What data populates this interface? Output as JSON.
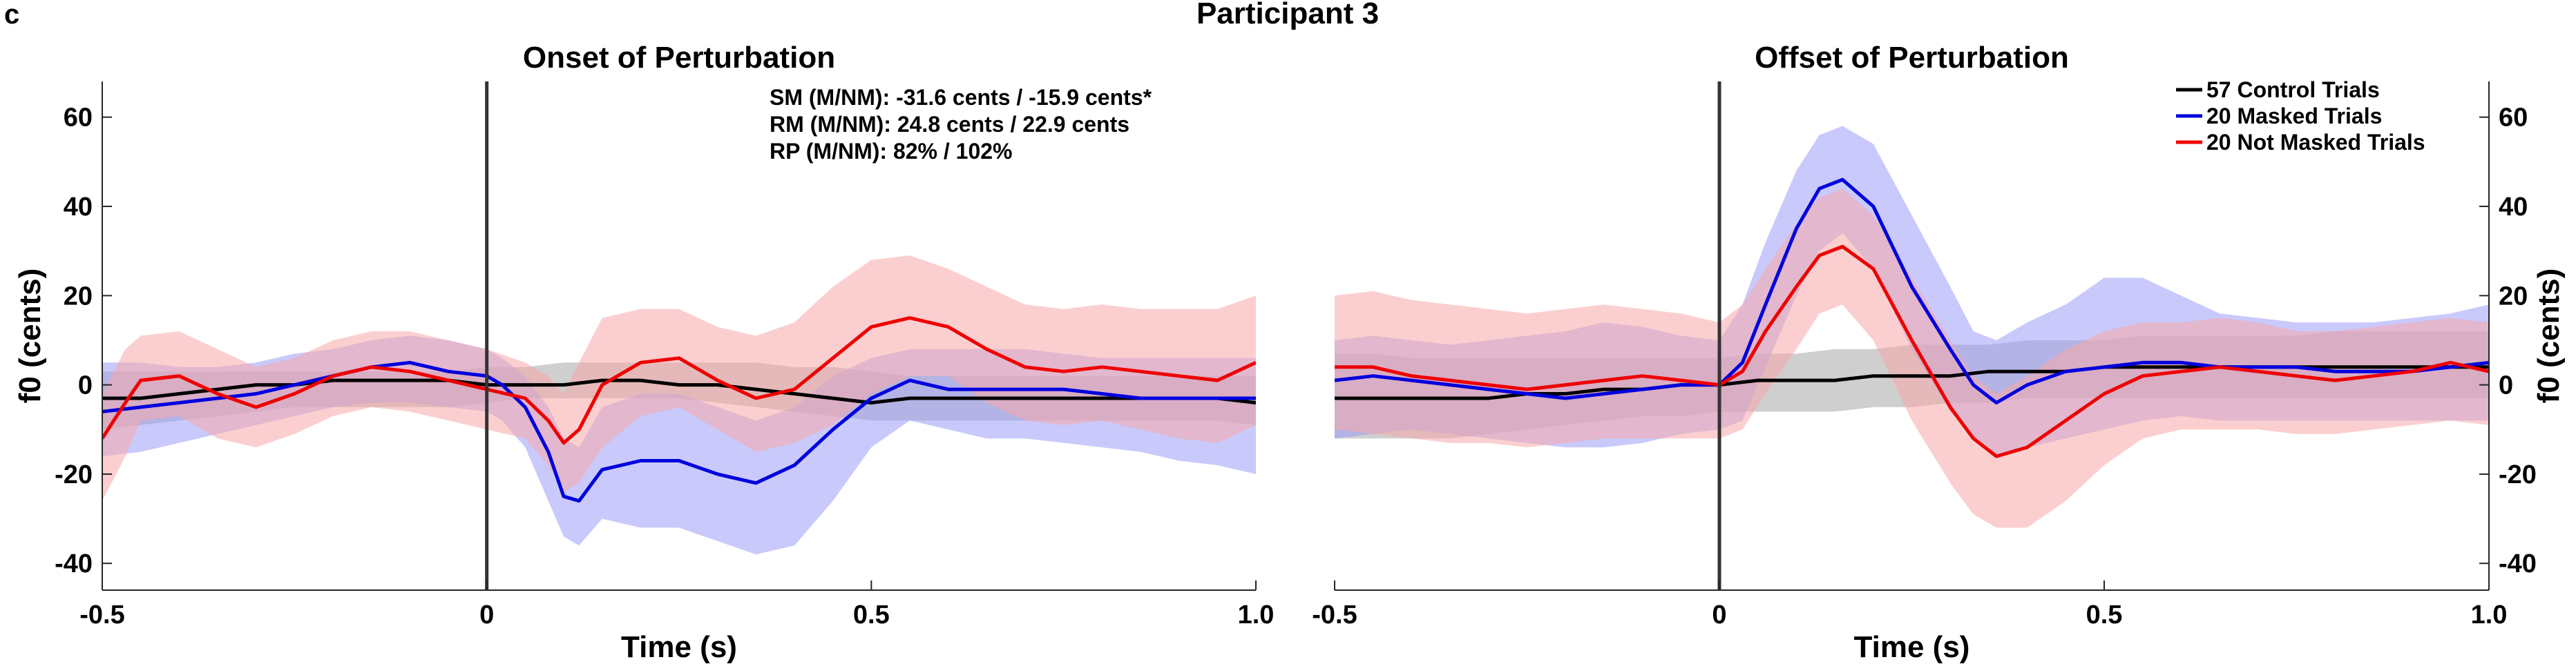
{
  "panel_letter": "c",
  "figure_title": "Participant 3",
  "stats": {
    "sm": "SM (M/NM): -31.6 cents / -15.9 cents*",
    "rm": "RM (M/NM): 24.8 cents / 22.9 cents",
    "rp": "RP (M/NM): 82% / 102%"
  },
  "legend": [
    {
      "label": "57 Control Trials",
      "color": "#000000"
    },
    {
      "label": "20 Masked Trials",
      "color": "#0000dd"
    },
    {
      "label": "20 Not Masked Trials",
      "color": "#ee0000"
    }
  ],
  "colors": {
    "control_line": "#000000",
    "control_band": "#bfbfbf",
    "masked_line": "#0000dd",
    "masked_band": "#9d9df7",
    "notmasked_line": "#ee0000",
    "notmasked_band": "#f7a8a8",
    "event_line": "#333333"
  },
  "chart_data": [
    {
      "type": "line",
      "title": "Onset of Perturbation",
      "xlabel": "Time (s)",
      "ylabel": "f0 (cents)",
      "xlim": [
        -0.5,
        1.0
      ],
      "ylim": [
        -46,
        68
      ],
      "xticks": [
        -0.5,
        0,
        0.5,
        1.0
      ],
      "xtick_labels": [
        "-0.5",
        "0",
        "0.5",
        "1.0"
      ],
      "yticks": [
        -40,
        -20,
        0,
        20,
        40,
        60
      ],
      "ytick_labels": [
        "-40",
        "-20",
        "0",
        "20",
        "40",
        "60"
      ],
      "ytick_side": "left",
      "event_x": 0,
      "series": [
        {
          "name": "57 Control Trials",
          "key": "control",
          "x": [
            -0.5,
            -0.45,
            -0.4,
            -0.35,
            -0.3,
            -0.25,
            -0.2,
            -0.15,
            -0.1,
            -0.05,
            0.0,
            0.05,
            0.1,
            0.15,
            0.2,
            0.25,
            0.3,
            0.35,
            0.4,
            0.45,
            0.5,
            0.55,
            0.6,
            0.65,
            0.7,
            0.75,
            0.8,
            0.85,
            0.9,
            0.95,
            1.0
          ],
          "mean": [
            -3,
            -3,
            -2,
            -1,
            0,
            0,
            1,
            1,
            1,
            1,
            0,
            0,
            0,
            1,
            1,
            0,
            0,
            -1,
            -2,
            -3,
            -4,
            -3,
            -3,
            -3,
            -3,
            -3,
            -3,
            -3,
            -3,
            -3,
            -4
          ],
          "upper": [
            3,
            3,
            3,
            3,
            3,
            3,
            3,
            3,
            3,
            3,
            4,
            4,
            5,
            5,
            5,
            5,
            5,
            5,
            4,
            4,
            3,
            2,
            2,
            2,
            2,
            2,
            2,
            2,
            2,
            2,
            2
          ],
          "lower": [
            -10,
            -9,
            -8,
            -7,
            -6,
            -5,
            -5,
            -5,
            -5,
            -5,
            -4,
            -3,
            -3,
            -3,
            -3,
            -3,
            -4,
            -5,
            -6,
            -7,
            -8,
            -8,
            -8,
            -8,
            -8,
            -8,
            -8,
            -8,
            -8,
            -8,
            -9
          ]
        },
        {
          "name": "20 Masked Trials",
          "key": "masked",
          "x": [
            -0.5,
            -0.45,
            -0.4,
            -0.35,
            -0.3,
            -0.25,
            -0.2,
            -0.15,
            -0.1,
            -0.05,
            0.0,
            0.02,
            0.05,
            0.08,
            0.1,
            0.12,
            0.15,
            0.2,
            0.25,
            0.3,
            0.35,
            0.4,
            0.45,
            0.5,
            0.55,
            0.6,
            0.65,
            0.7,
            0.75,
            0.8,
            0.85,
            0.9,
            0.95,
            1.0
          ],
          "mean": [
            -6,
            -5,
            -4,
            -3,
            -2,
            0,
            2,
            4,
            5,
            3,
            2,
            0,
            -5,
            -15,
            -25,
            -26,
            -19,
            -17,
            -17,
            -20,
            -22,
            -18,
            -10,
            -3,
            1,
            -1,
            -1,
            -1,
            -1,
            -2,
            -3,
            -3,
            -3,
            -3
          ],
          "upper": [
            5,
            5,
            4,
            4,
            5,
            7,
            8,
            10,
            11,
            10,
            8,
            6,
            2,
            -5,
            -12,
            -14,
            -5,
            -2,
            -2,
            -5,
            -8,
            -5,
            2,
            6,
            8,
            8,
            8,
            8,
            7,
            6,
            6,
            6,
            6,
            6
          ],
          "lower": [
            -16,
            -15,
            -13,
            -11,
            -9,
            -7,
            -5,
            -4,
            -4,
            -5,
            -6,
            -8,
            -14,
            -26,
            -34,
            -36,
            -30,
            -32,
            -32,
            -35,
            -38,
            -36,
            -26,
            -14,
            -8,
            -10,
            -12,
            -12,
            -13,
            -14,
            -15,
            -17,
            -18,
            -20
          ]
        },
        {
          "name": "20 Not Masked Trials",
          "key": "notmasked",
          "x": [
            -0.5,
            -0.47,
            -0.45,
            -0.4,
            -0.35,
            -0.3,
            -0.25,
            -0.2,
            -0.15,
            -0.1,
            -0.05,
            0.0,
            0.05,
            0.08,
            0.1,
            0.12,
            0.15,
            0.2,
            0.25,
            0.3,
            0.35,
            0.4,
            0.45,
            0.5,
            0.55,
            0.6,
            0.65,
            0.7,
            0.75,
            0.8,
            0.85,
            0.9,
            0.95,
            1.0
          ],
          "mean": [
            -12,
            -4,
            1,
            2,
            -2,
            -5,
            -2,
            2,
            4,
            3,
            1,
            -1,
            -3,
            -8,
            -13,
            -10,
            0,
            5,
            6,
            1,
            -3,
            -1,
            6,
            13,
            15,
            13,
            8,
            4,
            3,
            4,
            3,
            2,
            1,
            5
          ],
          "upper": [
            -2,
            8,
            11,
            12,
            8,
            4,
            6,
            10,
            12,
            12,
            10,
            8,
            5,
            2,
            -2,
            5,
            15,
            17,
            17,
            13,
            11,
            14,
            22,
            28,
            29,
            26,
            22,
            18,
            17,
            18,
            17,
            17,
            17,
            20
          ],
          "lower": [
            -26,
            -16,
            -8,
            -7,
            -12,
            -14,
            -11,
            -7,
            -5,
            -6,
            -8,
            -10,
            -12,
            -18,
            -24,
            -22,
            -14,
            -7,
            -5,
            -10,
            -15,
            -13,
            -9,
            -2,
            2,
            2,
            -4,
            -8,
            -9,
            -8,
            -10,
            -12,
            -13,
            -9
          ]
        }
      ]
    },
    {
      "type": "line",
      "title": "Offset of Perturbation",
      "xlabel": "Time (s)",
      "ylabel": "f0 (cents)",
      "xlim": [
        -0.5,
        1.0
      ],
      "ylim": [
        -46,
        68
      ],
      "xticks": [
        -0.5,
        0,
        0.5,
        1.0
      ],
      "xtick_labels": [
        "-0.5",
        "0",
        "0.5",
        "1.0"
      ],
      "yticks": [
        -40,
        -20,
        0,
        20,
        40,
        60
      ],
      "ytick_labels": [
        "-40",
        "-20",
        "0",
        "20",
        "40",
        "60"
      ],
      "ytick_side": "right",
      "event_x": 0,
      "legend_position": "top-right",
      "series": [
        {
          "name": "57 Control Trials",
          "key": "control",
          "x": [
            -0.5,
            -0.45,
            -0.4,
            -0.35,
            -0.3,
            -0.25,
            -0.2,
            -0.15,
            -0.1,
            -0.05,
            0.0,
            0.05,
            0.1,
            0.15,
            0.2,
            0.25,
            0.3,
            0.35,
            0.4,
            0.45,
            0.5,
            0.55,
            0.6,
            0.65,
            0.7,
            0.75,
            0.8,
            0.85,
            0.9,
            0.95,
            1.0
          ],
          "mean": [
            -3,
            -3,
            -3,
            -3,
            -3,
            -2,
            -2,
            -1,
            -1,
            0,
            0,
            1,
            1,
            1,
            2,
            2,
            2,
            3,
            3,
            3,
            4,
            4,
            4,
            4,
            4,
            4,
            4,
            4,
            4,
            4,
            4
          ],
          "upper": [
            7,
            7,
            6,
            6,
            6,
            6,
            6,
            6,
            6,
            6,
            6,
            7,
            7,
            8,
            8,
            9,
            9,
            9,
            10,
            10,
            10,
            11,
            11,
            11,
            11,
            11,
            12,
            12,
            12,
            12,
            12
          ],
          "lower": [
            -12,
            -12,
            -12,
            -12,
            -11,
            -10,
            -9,
            -8,
            -7,
            -7,
            -6,
            -6,
            -6,
            -6,
            -5,
            -5,
            -4,
            -4,
            -3,
            -3,
            -3,
            -3,
            -3,
            -3,
            -3,
            -3,
            -3,
            -3,
            -3,
            -3,
            -3
          ]
        },
        {
          "name": "20 Masked Trials",
          "key": "masked",
          "x": [
            -0.5,
            -0.45,
            -0.4,
            -0.35,
            -0.3,
            -0.25,
            -0.2,
            -0.15,
            -0.1,
            -0.05,
            0.0,
            0.03,
            0.06,
            0.1,
            0.13,
            0.16,
            0.2,
            0.25,
            0.3,
            0.33,
            0.36,
            0.4,
            0.45,
            0.5,
            0.55,
            0.6,
            0.65,
            0.7,
            0.75,
            0.8,
            0.85,
            0.9,
            0.95,
            1.0
          ],
          "mean": [
            1,
            2,
            1,
            0,
            -1,
            -2,
            -3,
            -2,
            -1,
            0,
            0,
            5,
            18,
            35,
            44,
            46,
            40,
            22,
            8,
            0,
            -4,
            0,
            3,
            4,
            5,
            5,
            4,
            4,
            4,
            3,
            3,
            3,
            4,
            5
          ],
          "upper": [
            10,
            11,
            10,
            9,
            10,
            11,
            12,
            14,
            13,
            11,
            10,
            18,
            32,
            48,
            56,
            58,
            54,
            38,
            22,
            12,
            10,
            14,
            18,
            24,
            24,
            20,
            16,
            15,
            14,
            14,
            14,
            15,
            16,
            18
          ],
          "lower": [
            -12,
            -11,
            -10,
            -11,
            -12,
            -13,
            -14,
            -14,
            -13,
            -11,
            -10,
            -8,
            4,
            20,
            30,
            34,
            26,
            8,
            -6,
            -12,
            -16,
            -14,
            -12,
            -10,
            -8,
            -7,
            -8,
            -8,
            -8,
            -8,
            -8,
            -8,
            -8,
            -8
          ]
        },
        {
          "name": "20 Not Masked Trials",
          "key": "notmasked",
          "x": [
            -0.5,
            -0.45,
            -0.4,
            -0.35,
            -0.3,
            -0.25,
            -0.2,
            -0.15,
            -0.1,
            -0.05,
            0.0,
            0.03,
            0.06,
            0.1,
            0.13,
            0.16,
            0.2,
            0.25,
            0.3,
            0.33,
            0.36,
            0.4,
            0.45,
            0.5,
            0.55,
            0.6,
            0.65,
            0.7,
            0.75,
            0.8,
            0.85,
            0.9,
            0.95,
            1.0
          ],
          "mean": [
            4,
            4,
            2,
            1,
            0,
            -1,
            0,
            1,
            2,
            1,
            0,
            3,
            12,
            22,
            29,
            31,
            26,
            10,
            -5,
            -12,
            -16,
            -14,
            -8,
            -2,
            2,
            3,
            4,
            3,
            2,
            1,
            2,
            3,
            5,
            3
          ],
          "upper": [
            20,
            21,
            19,
            18,
            17,
            16,
            17,
            18,
            17,
            16,
            14,
            18,
            26,
            36,
            42,
            44,
            38,
            24,
            10,
            2,
            -2,
            2,
            8,
            12,
            14,
            14,
            15,
            14,
            12,
            12,
            13,
            14,
            15,
            14
          ],
          "lower": [
            -10,
            -11,
            -12,
            -13,
            -13,
            -14,
            -13,
            -12,
            -12,
            -12,
            -12,
            -10,
            -2,
            8,
            16,
            18,
            10,
            -8,
            -22,
            -29,
            -32,
            -32,
            -26,
            -18,
            -12,
            -10,
            -10,
            -10,
            -11,
            -11,
            -10,
            -9,
            -8,
            -9
          ]
        }
      ]
    }
  ]
}
